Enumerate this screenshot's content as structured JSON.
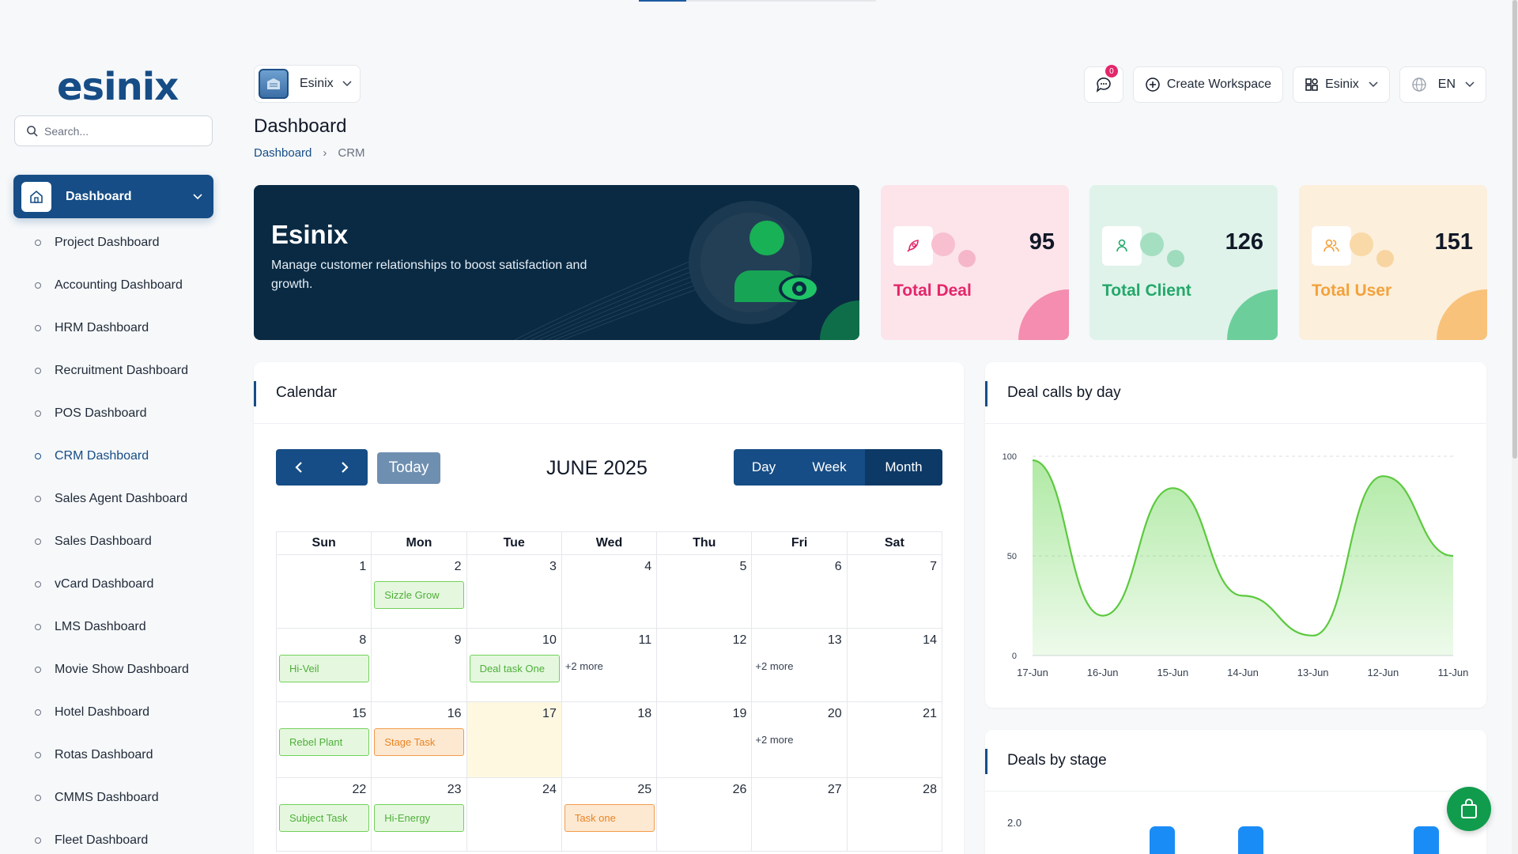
{
  "app": {
    "logo": "esinix"
  },
  "search": {
    "placeholder": "Search..."
  },
  "sidebar": {
    "main": "Dashboard",
    "items": [
      {
        "label": "Project Dashboard"
      },
      {
        "label": "Accounting Dashboard"
      },
      {
        "label": "HRM Dashboard"
      },
      {
        "label": "Recruitment Dashboard"
      },
      {
        "label": "POS Dashboard"
      },
      {
        "label": "CRM Dashboard"
      },
      {
        "label": "Sales Agent Dashboard"
      },
      {
        "label": "Sales Dashboard"
      },
      {
        "label": "vCard Dashboard"
      },
      {
        "label": "LMS Dashboard"
      },
      {
        "label": "Movie Show Dashboard"
      },
      {
        "label": "Hotel Dashboard"
      },
      {
        "label": "Rotas Dashboard"
      },
      {
        "label": "CMMS Dashboard"
      },
      {
        "label": "Fleet Dashboard"
      }
    ],
    "active": "CRM Dashboard"
  },
  "header": {
    "workspace": "Esinix",
    "title": "Dashboard",
    "crumb1": "Dashboard",
    "crumb2": "CRM",
    "messages_count": "0",
    "create_workspace": "Create Workspace",
    "workspace_menu": "Esinix",
    "language": "EN"
  },
  "hero": {
    "title": "Esinix",
    "text": "Manage customer relationships to boost satisfaction and growth."
  },
  "stats": [
    {
      "label": "Total Deal",
      "value": "95",
      "icon": "rocket-icon",
      "color": "#e4266a"
    },
    {
      "label": "Total Client",
      "value": "126",
      "icon": "user-icon",
      "color": "#24a86a"
    },
    {
      "label": "Total User",
      "value": "151",
      "icon": "users-icon",
      "color": "#f3a23c"
    }
  ],
  "calendar": {
    "title": "Calendar",
    "today": "Today",
    "month": "JUNE 2025",
    "views": [
      "Day",
      "Week",
      "Month"
    ],
    "weekdays": [
      "Sun",
      "Mon",
      "Tue",
      "Wed",
      "Thu",
      "Fri",
      "Sat"
    ],
    "weeks": [
      [
        {
          "n": "1"
        },
        {
          "n": "2",
          "ev": "Sizzle Grow",
          "c": "g"
        },
        {
          "n": "3"
        },
        {
          "n": "4"
        },
        {
          "n": "5"
        },
        {
          "n": "6"
        },
        {
          "n": "7"
        }
      ],
      [
        {
          "n": "8",
          "ev": "Hi-Veil",
          "c": "g"
        },
        {
          "n": "9"
        },
        {
          "n": "10",
          "ev": "Deal task One",
          "c": "g"
        },
        {
          "n": "11",
          "more": "+2 more"
        },
        {
          "n": "12"
        },
        {
          "n": "13",
          "more": "+2 more"
        },
        {
          "n": "14"
        }
      ],
      [
        {
          "n": "15",
          "ev": "Rebel Plant",
          "c": "g"
        },
        {
          "n": "16",
          "ev": "Stage Task",
          "c": "o"
        },
        {
          "n": "17",
          "today": true
        },
        {
          "n": "18"
        },
        {
          "n": "19"
        },
        {
          "n": "20",
          "more": "+2 more"
        },
        {
          "n": "21"
        }
      ],
      [
        {
          "n": "22",
          "ev": "Subject Task",
          "c": "g"
        },
        {
          "n": "23",
          "ev": "Hi-Energy",
          "c": "g"
        },
        {
          "n": "24"
        },
        {
          "n": "25",
          "ev": "Task one",
          "c": "o"
        },
        {
          "n": "26"
        },
        {
          "n": "27"
        },
        {
          "n": "28"
        }
      ]
    ]
  },
  "deal_calls": {
    "title": "Deal calls by day",
    "chart_data": {
      "type": "area",
      "categories": [
        "17-Jun",
        "16-Jun",
        "15-Jun",
        "14-Jun",
        "13-Jun",
        "12-Jun",
        "11-Jun"
      ],
      "values": [
        98,
        20,
        84,
        30,
        10,
        90,
        50
      ],
      "yticks": [
        0,
        50,
        100
      ],
      "ylim": [
        0,
        100
      ],
      "color": "#6fd85a",
      "grid": true
    }
  },
  "deals_by_stage": {
    "title": "Deals by stage",
    "ytick_top": "2.0"
  }
}
